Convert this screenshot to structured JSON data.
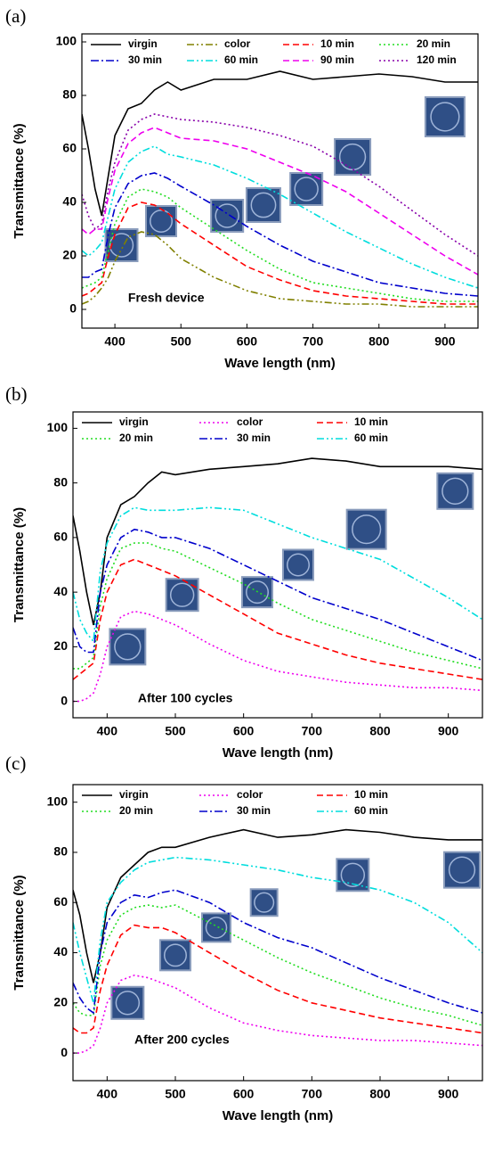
{
  "chart_data": [
    {
      "type": "line",
      "label": "(a)",
      "annotation": "Fresh device",
      "x_label": "Wave length (nm)",
      "y_label": "Transmittance (%)",
      "xlim": [
        350,
        950
      ],
      "xticks": [
        400,
        500,
        600,
        700,
        800,
        900
      ],
      "ylim": [
        -7,
        103
      ],
      "yticks": [
        0,
        20,
        40,
        60,
        80,
        100
      ],
      "legend": "upper left",
      "x": [
        350,
        360,
        370,
        380,
        390,
        400,
        420,
        440,
        460,
        480,
        500,
        550,
        600,
        650,
        700,
        750,
        800,
        850,
        900,
        950
      ],
      "series": [
        {
          "name": "virgin",
          "color": "#000000",
          "style": "solid",
          "values": [
            73,
            60,
            45,
            35,
            50,
            65,
            75,
            77,
            82,
            85,
            82,
            86,
            86,
            89,
            86,
            87,
            88,
            87,
            85,
            85
          ]
        },
        {
          "name": "color",
          "color": "#808000",
          "style": "dashdotdot",
          "values": [
            2,
            3,
            5,
            8,
            12,
            18,
            27,
            29,
            28,
            24,
            19,
            12,
            7,
            4,
            3,
            2,
            2,
            1,
            1,
            1
          ]
        },
        {
          "name": "10 min",
          "color": "#ff0000",
          "style": "dashed",
          "values": [
            5,
            6,
            8,
            10,
            20,
            28,
            38,
            40,
            39,
            36,
            32,
            24,
            16,
            11,
            7,
            5,
            4,
            3,
            2,
            2
          ]
        },
        {
          "name": "20 min",
          "color": "#22dd22",
          "style": "dotted",
          "values": [
            8,
            9,
            10,
            12,
            22,
            32,
            42,
            45,
            44,
            42,
            38,
            30,
            22,
            15,
            10,
            8,
            6,
            4,
            3,
            3
          ]
        },
        {
          "name": "30 min",
          "color": "#0000cc",
          "style": "dashdot",
          "values": [
            12,
            12,
            14,
            15,
            28,
            38,
            47,
            50,
            51,
            49,
            46,
            39,
            31,
            24,
            18,
            14,
            10,
            8,
            6,
            5
          ]
        },
        {
          "name": "60 min",
          "color": "#00dddd",
          "style": "dashdotdot",
          "values": [
            22,
            20,
            22,
            25,
            35,
            45,
            55,
            59,
            61,
            58,
            57,
            54,
            49,
            43,
            36,
            29,
            23,
            17,
            12,
            8
          ]
        },
        {
          "name": "90 min",
          "color": "#ee00ee",
          "style": "dashed",
          "values": [
            30,
            28,
            30,
            30,
            42,
            52,
            62,
            66,
            68,
            66,
            64,
            63,
            60,
            55,
            50,
            44,
            36,
            28,
            20,
            13
          ]
        },
        {
          "name": "120 min",
          "color": "#8800aa",
          "style": "dotted",
          "values": [
            43,
            35,
            30,
            32,
            45,
            55,
            67,
            71,
            73,
            72,
            71,
            70,
            68,
            65,
            61,
            54,
            46,
            37,
            28,
            20
          ]
        }
      ]
    },
    {
      "type": "line",
      "label": "(b)",
      "annotation": "After 100 cycles",
      "x_label": "Wave length (nm)",
      "y_label": "Transmittance (%)",
      "xlim": [
        350,
        950
      ],
      "xticks": [
        400,
        500,
        600,
        700,
        800,
        900
      ],
      "ylim": [
        -6,
        106
      ],
      "yticks": [
        0,
        20,
        40,
        60,
        80,
        100
      ],
      "legend": "upper left",
      "x": [
        350,
        360,
        370,
        380,
        390,
        400,
        420,
        440,
        460,
        480,
        500,
        550,
        600,
        650,
        700,
        750,
        800,
        850,
        900,
        950
      ],
      "series": [
        {
          "name": "virgin",
          "color": "#000000",
          "style": "solid",
          "values": [
            68,
            55,
            40,
            28,
            40,
            60,
            72,
            75,
            80,
            84,
            83,
            85,
            86,
            87,
            89,
            88,
            86,
            86,
            86,
            85
          ]
        },
        {
          "name": "color",
          "color": "#ee00ee",
          "style": "dotted",
          "values": [
            0,
            0,
            1,
            3,
            10,
            20,
            31,
            33,
            32,
            30,
            28,
            21,
            15,
            11,
            9,
            7,
            6,
            5,
            5,
            4
          ]
        },
        {
          "name": "10 min",
          "color": "#ff0000",
          "style": "dashed",
          "values": [
            8,
            10,
            12,
            14,
            30,
            40,
            50,
            52,
            50,
            48,
            46,
            39,
            32,
            25,
            21,
            17,
            14,
            12,
            10,
            8
          ]
        },
        {
          "name": "20 min",
          "color": "#22dd22",
          "style": "dotted",
          "values": [
            12,
            12,
            14,
            16,
            35,
            45,
            56,
            58,
            58,
            56,
            55,
            49,
            43,
            36,
            30,
            26,
            22,
            18,
            15,
            12
          ]
        },
        {
          "name": "30 min",
          "color": "#0000cc",
          "style": "dashdot",
          "values": [
            27,
            20,
            18,
            18,
            40,
            50,
            60,
            63,
            62,
            60,
            60,
            56,
            50,
            44,
            38,
            34,
            30,
            25,
            20,
            15
          ]
        },
        {
          "name": "60 min",
          "color": "#00dddd",
          "style": "dashdotdot",
          "values": [
            40,
            30,
            25,
            22,
            48,
            58,
            68,
            71,
            70,
            70,
            70,
            71,
            70,
            65,
            60,
            56,
            52,
            45,
            38,
            30
          ]
        }
      ]
    },
    {
      "type": "line",
      "label": "(c)",
      "annotation": "After 200 cycles",
      "x_label": "Wave length (nm)",
      "y_label": "Transmittance (%)",
      "xlim": [
        350,
        950
      ],
      "xticks": [
        400,
        500,
        600,
        700,
        800,
        900
      ],
      "ylim": [
        -11,
        107
      ],
      "yticks": [
        0,
        20,
        40,
        60,
        80,
        100
      ],
      "legend": "upper left",
      "x": [
        350,
        360,
        370,
        380,
        390,
        400,
        420,
        440,
        460,
        480,
        500,
        550,
        600,
        650,
        700,
        750,
        800,
        850,
        900,
        950
      ],
      "series": [
        {
          "name": "virgin",
          "color": "#000000",
          "style": "solid",
          "values": [
            65,
            55,
            40,
            28,
            40,
            58,
            70,
            75,
            80,
            82,
            82,
            86,
            89,
            86,
            87,
            89,
            88,
            86,
            85,
            85
          ]
        },
        {
          "name": "color",
          "color": "#ee00ee",
          "style": "dotted",
          "values": [
            0,
            0,
            1,
            3,
            10,
            20,
            29,
            31,
            30,
            28,
            26,
            18,
            12,
            9,
            7,
            6,
            5,
            5,
            4,
            3
          ]
        },
        {
          "name": "10 min",
          "color": "#ff0000",
          "style": "dashed",
          "values": [
            10,
            8,
            8,
            10,
            25,
            35,
            47,
            51,
            50,
            50,
            48,
            40,
            32,
            25,
            20,
            17,
            14,
            12,
            10,
            8
          ]
        },
        {
          "name": "20 min",
          "color": "#22dd22",
          "style": "dotted",
          "values": [
            20,
            16,
            15,
            15,
            35,
            45,
            55,
            58,
            59,
            58,
            59,
            52,
            45,
            38,
            32,
            27,
            22,
            18,
            15,
            11
          ]
        },
        {
          "name": "30 min",
          "color": "#0000cc",
          "style": "dashdot",
          "values": [
            28,
            22,
            18,
            16,
            40,
            52,
            60,
            63,
            62,
            64,
            65,
            60,
            52,
            46,
            42,
            36,
            30,
            25,
            20,
            16
          ]
        },
        {
          "name": "60 min",
          "color": "#00dddd",
          "style": "dashdotdot",
          "values": [
            52,
            40,
            30,
            20,
            45,
            60,
            68,
            73,
            76,
            77,
            78,
            77,
            75,
            73,
            70,
            68,
            65,
            60,
            52,
            40
          ]
        }
      ]
    }
  ]
}
